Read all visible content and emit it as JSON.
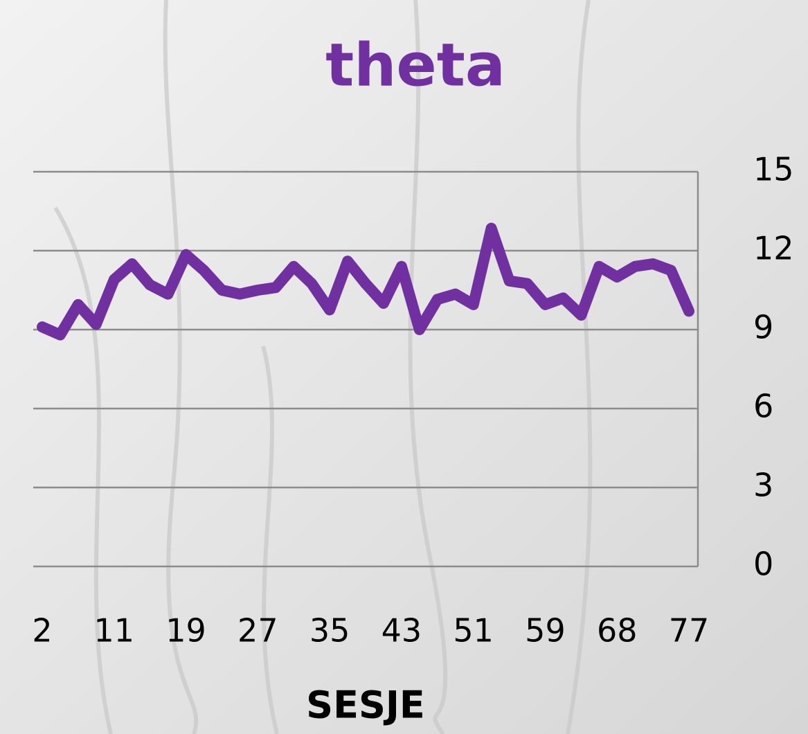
{
  "chart_data": {
    "type": "line",
    "title": "theta",
    "x_label": "SESJE",
    "categories": [
      "2",
      null,
      null,
      null,
      "11",
      null,
      null,
      null,
      "19",
      null,
      null,
      null,
      "27",
      null,
      null,
      null,
      "35",
      null,
      null,
      null,
      "43",
      null,
      null,
      null,
      "51",
      null,
      null,
      null,
      "59",
      null,
      null,
      null,
      "68",
      null,
      null,
      null,
      "77"
    ],
    "values": [
      9.1,
      8.8,
      9.95,
      9.2,
      10.9,
      11.5,
      10.7,
      10.35,
      11.85,
      11.25,
      10.5,
      10.35,
      10.5,
      10.6,
      11.4,
      10.75,
      9.75,
      11.6,
      10.75,
      10.0,
      11.4,
      9.0,
      10.15,
      10.35,
      9.95,
      12.85,
      10.85,
      10.75,
      9.95,
      10.2,
      9.55,
      11.4,
      11.0,
      11.4,
      11.5,
      11.25,
      9.7
    ],
    "color": "#7030a0",
    "ylim": [
      0,
      15
    ],
    "yticks": [
      0,
      3,
      6,
      9,
      12,
      15
    ],
    "grid": true
  }
}
